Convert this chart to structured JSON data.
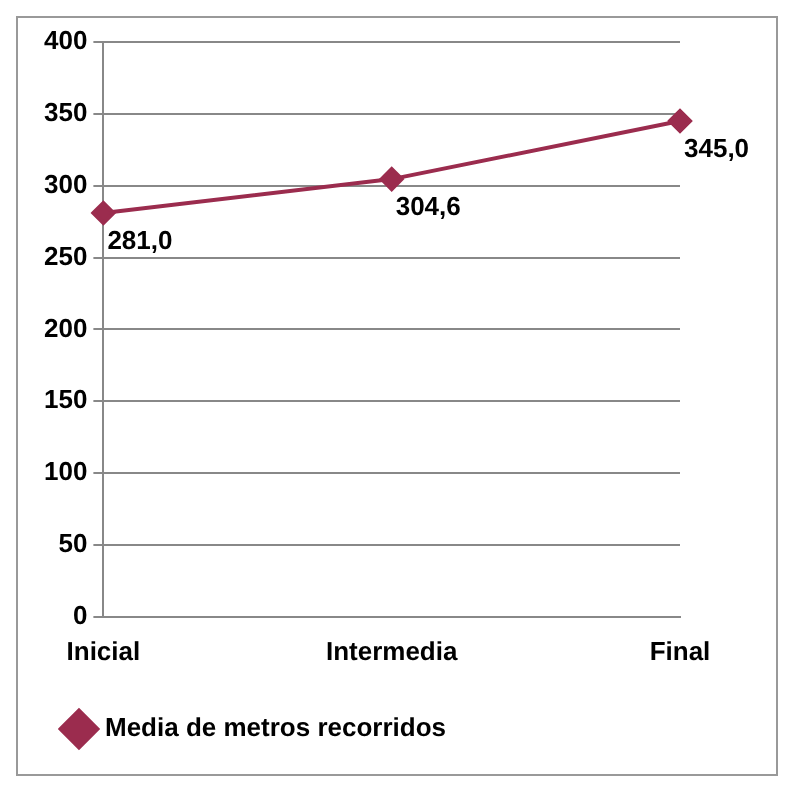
{
  "chart_data": {
    "type": "line",
    "categories": [
      "Inicial",
      "Intermedia",
      "Final"
    ],
    "series": [
      {
        "name": "Media de metros recorridos",
        "color": "#9b2c4e",
        "values": [
          281.0,
          304.6,
          345.0
        ],
        "value_labels": [
          "281,0",
          "304,6",
          "345,0"
        ]
      }
    ],
    "ylim": [
      0,
      400
    ],
    "yticks": [
      0,
      50,
      100,
      150,
      200,
      250,
      300,
      350,
      400
    ],
    "grid": "y",
    "legend": "bottom",
    "marker": "diamond",
    "line_style": "solid"
  }
}
